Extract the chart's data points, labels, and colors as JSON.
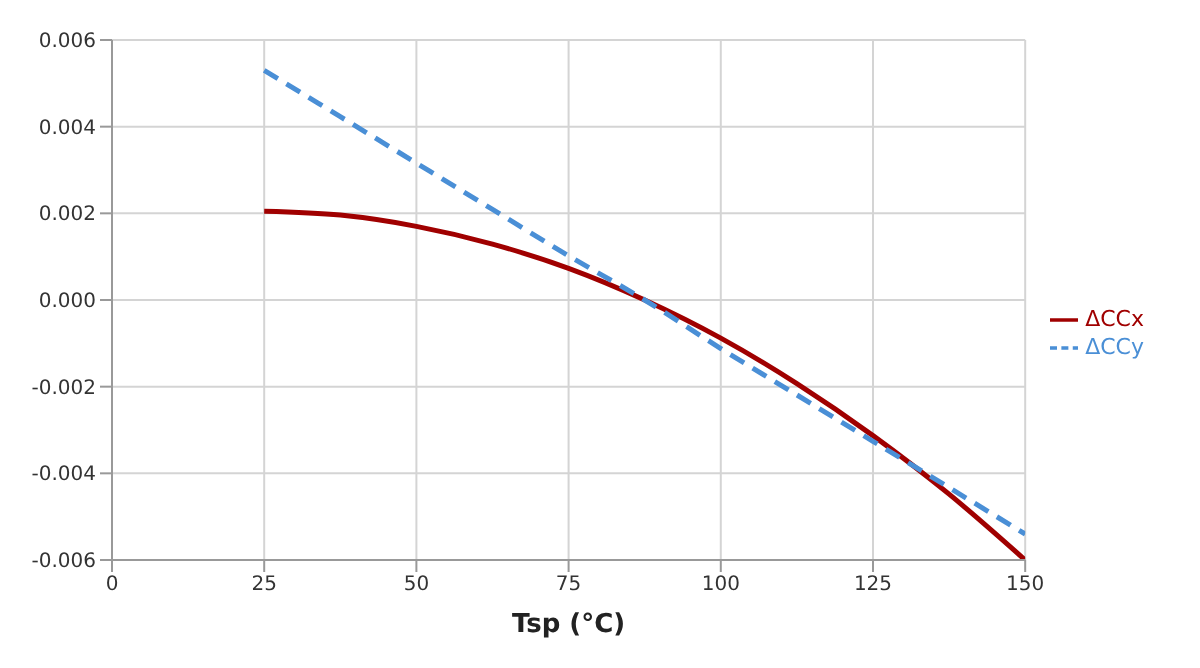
{
  "chart_data": {
    "type": "line",
    "xlabel": "Tsp (°C)",
    "x": [
      25,
      37.5,
      50,
      62.5,
      75,
      87.5,
      100,
      112.5,
      125,
      137.5,
      150
    ],
    "series": [
      {
        "name": "ΔCCx",
        "color": "#a00000",
        "line_style": "solid",
        "values": [
          0.00205,
          0.00196,
          0.0017,
          0.00129,
          0.00073,
          0,
          -0.00088,
          -0.00193,
          -0.00313,
          -0.00448,
          -0.006
        ]
      },
      {
        "name": "ΔCCy",
        "color": "#4a8fd6",
        "line_style": "dashed",
        "values": [
          0.0053,
          0.00423,
          0.00316,
          0.00209,
          0.00102,
          0,
          -0.00112,
          -0.00219,
          -0.00326,
          -0.00433,
          -0.0054
        ]
      }
    ],
    "xlim": [
      0,
      150
    ],
    "xticks": [
      0,
      25,
      50,
      75,
      100,
      125,
      150
    ],
    "ylim": [
      -0.006,
      0.006
    ],
    "yticks": [
      {
        "value": -0.006,
        "label": "-0.006"
      },
      {
        "value": -0.004,
        "label": "-0.004"
      },
      {
        "value": -0.002,
        "label": "-0.002"
      },
      {
        "value": 0,
        "label": "0.000"
      },
      {
        "value": 0.002,
        "label": "0.002"
      },
      {
        "value": 0.004,
        "label": "0.004"
      },
      {
        "value": 0.006,
        "label": "0.006"
      }
    ],
    "grid": true,
    "legend": "right",
    "marker": "none"
  }
}
